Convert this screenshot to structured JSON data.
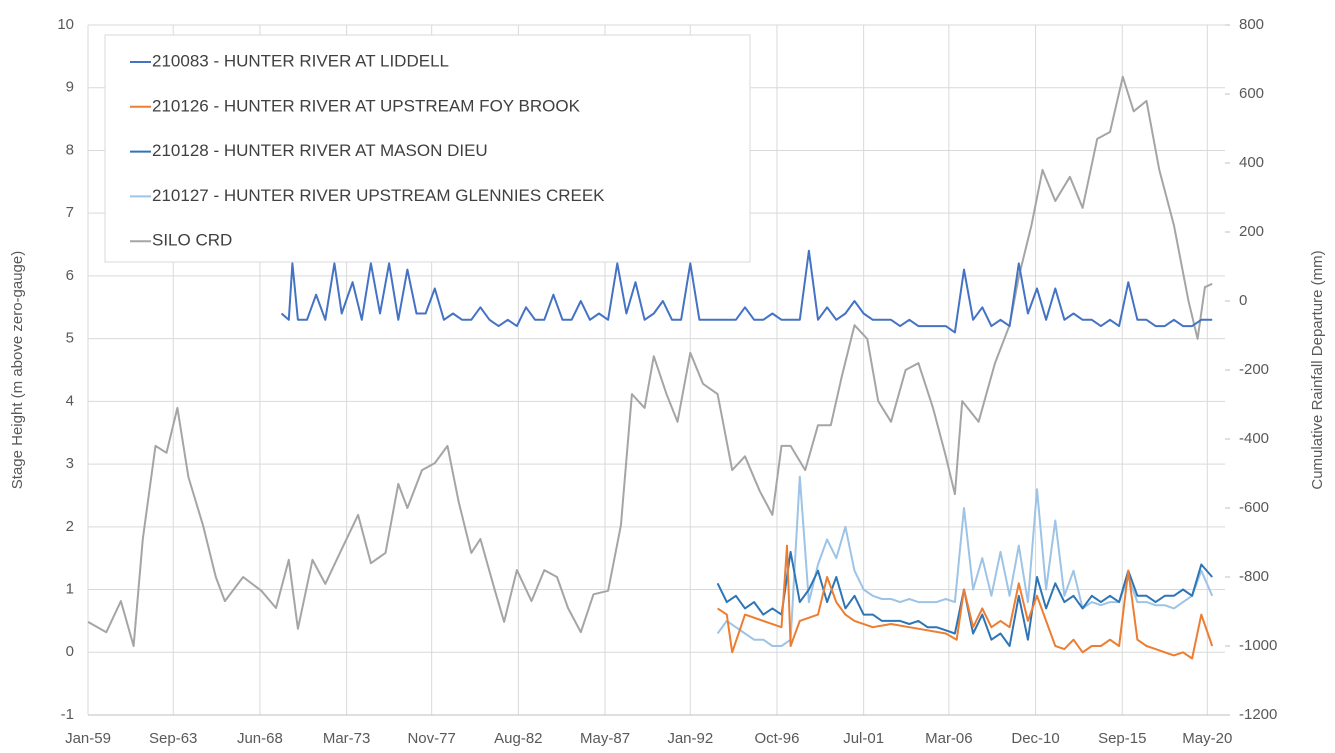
{
  "chart_data": {
    "type": "line",
    "ylabel": "Stage Height (m above zero-gauge)",
    "y2label": "Cumulative Rainfall Departure (mm)",
    "xlim": [
      1959,
      2021.3
    ],
    "xticks": [
      {
        "value": 1959.0,
        "label": "Jan-59"
      },
      {
        "value": 1963.67,
        "label": "Sep-63"
      },
      {
        "value": 1968.42,
        "label": "Jun-68"
      },
      {
        "value": 1973.17,
        "label": "Mar-73"
      },
      {
        "value": 1977.83,
        "label": "Nov-77"
      },
      {
        "value": 1982.58,
        "label": "Aug-82"
      },
      {
        "value": 1987.33,
        "label": "May-87"
      },
      {
        "value": 1992.0,
        "label": "Jan-92"
      },
      {
        "value": 1996.75,
        "label": "Oct-96"
      },
      {
        "value": 2001.5,
        "label": "Jul-01"
      },
      {
        "value": 2006.17,
        "label": "Mar-06"
      },
      {
        "value": 2010.92,
        "label": "Dec-10"
      },
      {
        "value": 2015.67,
        "label": "Sep-15"
      },
      {
        "value": 2020.33,
        "label": "May-20"
      }
    ],
    "ylim": [
      -1,
      10
    ],
    "yticks": [
      -1,
      0,
      1,
      2,
      3,
      4,
      5,
      6,
      7,
      8,
      9,
      10
    ],
    "y2lim": [
      -1200,
      800
    ],
    "y2ticks": [
      -1200,
      -1000,
      -800,
      -600,
      -400,
      -200,
      0,
      200,
      400,
      600,
      800
    ],
    "grid": true,
    "legend": "top-left",
    "series": [
      {
        "name": "210083 - HUNTER RIVER AT LIDDELL",
        "color": "#4472c4",
        "x": [
          1969.6,
          1970.0,
          1970.2,
          1970.5,
          1971.0,
          1971.5,
          1972.0,
          1972.5,
          1972.9,
          1973.5,
          1974.0,
          1974.5,
          1975.0,
          1975.5,
          1976.0,
          1976.5,
          1977.0,
          1977.5,
          1978.0,
          1978.5,
          1979.0,
          1979.5,
          1980.0,
          1980.5,
          1981.0,
          1981.5,
          1982.0,
          1982.5,
          1983.0,
          1983.5,
          1984.0,
          1984.5,
          1985.0,
          1985.5,
          1986.0,
          1986.5,
          1987.0,
          1987.5,
          1988.0,
          1988.5,
          1989.0,
          1989.5,
          1990.0,
          1990.5,
          1991.0,
          1991.5,
          1992.0,
          1992.5,
          1993.0,
          1993.5,
          1994.0,
          1994.5,
          1995.0,
          1995.5,
          1996.0,
          1996.5,
          1997.0,
          1997.5,
          1998.0,
          1998.5,
          1999.0,
          1999.5,
          2000.0,
          2000.5,
          2001.0,
          2001.5,
          2002.0,
          2002.5,
          2003.0,
          2003.5,
          2004.0,
          2004.5,
          2005.0,
          2005.5,
          2006.0,
          2006.5,
          2007.0,
          2007.5,
          2008.0,
          2008.5,
          2009.0,
          2009.5,
          2010.0,
          2010.5,
          2011.0,
          2011.5,
          2012.0,
          2012.5,
          2013.0,
          2013.5,
          2014.0,
          2014.5,
          2015.0,
          2015.5,
          2016.0,
          2016.5,
          2017.0,
          2017.5,
          2018.0,
          2018.5,
          2019.0,
          2019.5,
          2020.0,
          2020.6
        ],
        "values": [
          5.4,
          5.3,
          6.2,
          5.3,
          5.3,
          5.7,
          5.3,
          6.2,
          5.4,
          5.9,
          5.3,
          6.2,
          5.4,
          6.2,
          5.3,
          6.1,
          5.4,
          5.4,
          5.8,
          5.3,
          5.4,
          5.3,
          5.3,
          5.5,
          5.3,
          5.2,
          5.3,
          5.2,
          5.5,
          5.3,
          5.3,
          5.7,
          5.3,
          5.3,
          5.6,
          5.3,
          5.4,
          5.3,
          6.2,
          5.4,
          5.9,
          5.3,
          5.4,
          5.6,
          5.3,
          5.3,
          6.2,
          5.3,
          5.3,
          5.3,
          5.3,
          5.3,
          5.5,
          5.3,
          5.3,
          5.4,
          5.3,
          5.3,
          5.3,
          6.4,
          5.3,
          5.5,
          5.3,
          5.4,
          5.6,
          5.4,
          5.3,
          5.3,
          5.3,
          5.2,
          5.3,
          5.2,
          5.2,
          5.2,
          5.2,
          5.1,
          6.1,
          5.3,
          5.5,
          5.2,
          5.3,
          5.2,
          6.2,
          5.4,
          5.8,
          5.3,
          5.8,
          5.3,
          5.4,
          5.3,
          5.3,
          5.2,
          5.3,
          5.2,
          5.9,
          5.3,
          5.3,
          5.2,
          5.2,
          5.3,
          5.2,
          5.2,
          5.3,
          5.3
        ]
      },
      {
        "name": "210126 - HUNTER RIVER AT UPSTREAM FOY BROOK",
        "color": "#ed7d31",
        "x": [
          1993.5,
          1994.0,
          1994.3,
          1995.0,
          1996.0,
          1997.0,
          1997.3,
          1997.5,
          1998.0,
          1999.0,
          1999.5,
          2000.0,
          2000.5,
          2001.0,
          2002.0,
          2003.0,
          2004.0,
          2005.0,
          2006.0,
          2006.6,
          2007.0,
          2007.5,
          2008.0,
          2008.5,
          2009.0,
          2009.5,
          2010.0,
          2010.5,
          2011.0,
          2011.5,
          2012.0,
          2012.5,
          2013.0,
          2013.5,
          2014.0,
          2014.5,
          2015.0,
          2015.5,
          2016.0,
          2016.5,
          2017.0,
          2017.5,
          2018.0,
          2018.5,
          2019.0,
          2019.5,
          2020.0,
          2020.6
        ],
        "values": [
          0.7,
          0.6,
          0.0,
          0.6,
          0.5,
          0.4,
          1.7,
          0.1,
          0.5,
          0.6,
          1.2,
          0.8,
          0.6,
          0.5,
          0.4,
          0.45,
          0.4,
          0.35,
          0.3,
          0.2,
          1.0,
          0.4,
          0.7,
          0.4,
          0.5,
          0.4,
          1.1,
          0.5,
          0.9,
          0.5,
          0.1,
          0.05,
          0.2,
          0.0,
          0.1,
          0.1,
          0.2,
          0.1,
          1.3,
          0.2,
          0.1,
          0.05,
          0.0,
          -0.05,
          0.0,
          -0.1,
          0.6,
          0.1
        ]
      },
      {
        "name": "210128 - HUNTER RIVER AT MASON DIEU",
        "color": "#2e75b6",
        "x": [
          1993.5,
          1994.0,
          1994.5,
          1995.0,
          1995.5,
          1996.0,
          1996.5,
          1997.0,
          1997.5,
          1998.0,
          1998.5,
          1999.0,
          1999.5,
          2000.0,
          2000.5,
          2001.0,
          2001.5,
          2002.0,
          2002.5,
          2003.0,
          2003.5,
          2004.0,
          2004.5,
          2005.0,
          2005.5,
          2006.0,
          2006.5,
          2007.0,
          2007.5,
          2008.0,
          2008.5,
          2009.0,
          2009.5,
          2010.0,
          2010.5,
          2011.0,
          2011.5,
          2012.0,
          2012.5,
          2013.0,
          2013.5,
          2014.0,
          2014.5,
          2015.0,
          2015.5,
          2016.0,
          2016.5,
          2017.0,
          2017.5,
          2018.0,
          2018.5,
          2019.0,
          2019.5,
          2020.0,
          2020.6
        ],
        "values": [
          1.1,
          0.8,
          0.9,
          0.7,
          0.8,
          0.6,
          0.7,
          0.6,
          1.6,
          0.8,
          1.0,
          1.3,
          0.8,
          1.2,
          0.7,
          0.9,
          0.6,
          0.6,
          0.5,
          0.5,
          0.5,
          0.45,
          0.5,
          0.4,
          0.4,
          0.35,
          0.3,
          1.0,
          0.3,
          0.6,
          0.2,
          0.3,
          0.1,
          0.9,
          0.2,
          1.2,
          0.7,
          1.1,
          0.8,
          0.9,
          0.7,
          0.9,
          0.8,
          0.9,
          0.8,
          1.3,
          0.9,
          0.9,
          0.8,
          0.9,
          0.9,
          1.0,
          0.9,
          1.4,
          1.2
        ]
      },
      {
        "name": "210127 - HUNTER RIVER UPSTREAM GLENNIES CREEK",
        "color": "#9dc3e6",
        "x": [
          1993.5,
          1994.0,
          1994.5,
          1995.0,
          1995.5,
          1996.0,
          1996.5,
          1997.0,
          1997.5,
          1998.0,
          1998.5,
          1999.0,
          1999.5,
          2000.0,
          2000.5,
          2001.0,
          2001.5,
          2002.0,
          2002.5,
          2003.0,
          2003.5,
          2004.0,
          2004.5,
          2005.0,
          2005.5,
          2006.0,
          2006.5,
          2007.0,
          2007.5,
          2008.0,
          2008.5,
          2009.0,
          2009.5,
          2010.0,
          2010.5,
          2011.0,
          2011.5,
          2012.0,
          2012.5,
          2013.0,
          2013.5,
          2014.0,
          2014.5,
          2015.0,
          2015.5,
          2016.0,
          2016.5,
          2017.0,
          2017.5,
          2018.0,
          2018.5,
          2019.0,
          2019.5,
          2020.0,
          2020.6
        ],
        "values": [
          0.3,
          0.5,
          0.4,
          0.3,
          0.2,
          0.2,
          0.1,
          0.1,
          0.2,
          2.8,
          0.8,
          1.4,
          1.8,
          1.5,
          2.0,
          1.3,
          1.0,
          0.9,
          0.85,
          0.85,
          0.8,
          0.85,
          0.8,
          0.8,
          0.8,
          0.85,
          0.8,
          2.3,
          1.0,
          1.5,
          0.9,
          1.6,
          0.9,
          1.7,
          0.8,
          2.6,
          1.0,
          2.1,
          0.9,
          1.3,
          0.7,
          0.8,
          0.75,
          0.8,
          0.8,
          1.2,
          0.8,
          0.8,
          0.75,
          0.75,
          0.7,
          0.8,
          0.9,
          1.3,
          0.9
        ]
      },
      {
        "name": "SILO CRD",
        "color": "#a5a5a5",
        "axis": "y2",
        "x": [
          1959.0,
          1960.0,
          1960.8,
          1961.5,
          1962.0,
          1962.7,
          1963.3,
          1963.9,
          1964.5,
          1965.3,
          1966.0,
          1966.5,
          1967.5,
          1968.5,
          1969.3,
          1970.0,
          1970.5,
          1971.3,
          1972.0,
          1972.8,
          1973.8,
          1974.5,
          1975.3,
          1976.0,
          1976.5,
          1977.3,
          1978.0,
          1978.7,
          1979.3,
          1980.0,
          1980.5,
          1981.3,
          1981.8,
          1982.5,
          1983.3,
          1984.0,
          1984.7,
          1985.3,
          1986.0,
          1986.7,
          1987.5,
          1988.2,
          1988.8,
          1989.5,
          1990.0,
          1990.7,
          1991.3,
          1992.0,
          1992.7,
          1993.5,
          1994.3,
          1995.0,
          1995.8,
          1996.5,
          1997.0,
          1997.5,
          1998.3,
          1999.0,
          1999.7,
          2000.3,
          2001.0,
          2001.7,
          2002.3,
          2003.0,
          2003.8,
          2004.5,
          2005.3,
          2006.0,
          2006.5,
          2006.9,
          2007.8,
          2008.7,
          2009.5,
          2010.0,
          2010.7,
          2011.3,
          2012.0,
          2012.8,
          2013.5,
          2014.3,
          2015.0,
          2015.7,
          2016.3,
          2017.0,
          2017.7,
          2018.5,
          2019.3,
          2019.8,
          2020.2,
          2020.6
        ],
        "values": [
          -930,
          -960,
          -870,
          -1000,
          -690,
          -420,
          -440,
          -310,
          -510,
          -650,
          -800,
          -870,
          -800,
          -840,
          -890,
          -750,
          -950,
          -750,
          -820,
          -730,
          -620,
          -760,
          -730,
          -530,
          -600,
          -490,
          -470,
          -420,
          -580,
          -730,
          -690,
          -840,
          -930,
          -780,
          -870,
          -780,
          -800,
          -890,
          -960,
          -850,
          -840,
          -650,
          -270,
          -310,
          -160,
          -270,
          -350,
          -150,
          -240,
          -270,
          -490,
          -450,
          -550,
          -620,
          -420,
          -420,
          -490,
          -360,
          -360,
          -220,
          -70,
          -110,
          -290,
          -350,
          -200,
          -180,
          -310,
          -450,
          -560,
          -290,
          -350,
          -180,
          -70,
          70,
          220,
          380,
          290,
          360,
          270,
          470,
          490,
          650,
          550,
          580,
          380,
          220,
          0,
          -110,
          40,
          50
        ]
      }
    ]
  }
}
